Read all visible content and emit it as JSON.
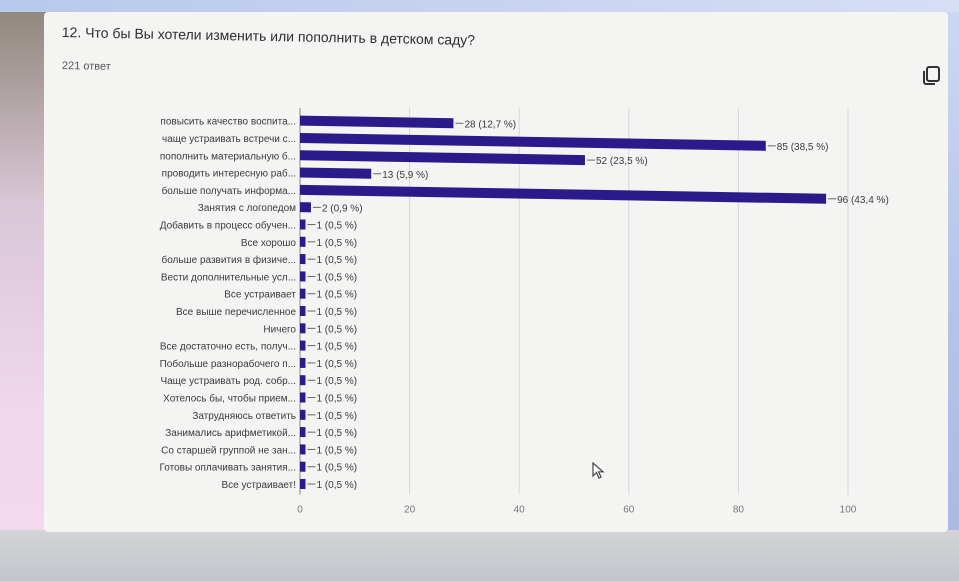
{
  "header": {
    "title": "12. Что бы Вы хотели изменить или пополнить в детском саду?",
    "responses": "221 ответ"
  },
  "icons": {
    "copy": "copy-icon",
    "cursor": "mouse-cursor-icon"
  },
  "colors": {
    "bar": "#2a1a8a",
    "grid": "#d8d8d8",
    "text": "#3a3a40",
    "card": "#f4f4f3"
  },
  "chart_data": {
    "type": "bar",
    "orientation": "horizontal",
    "categories": [
      "повысить качество воспита...",
      "чаще устраивать встречи с...",
      "пополнить материальную б...",
      "проводить интересную раб...",
      "больше получать информа...",
      "Занятия с логопедом",
      "Добавить в процесс обучен...",
      "Все хорошо",
      "больше развития в физиче...",
      "Вести дополнительные усл...",
      "Все устраивает",
      "Все выше перечисленное",
      "Ничего",
      "Все достаточно есть, получ...",
      "Побольше разнорабочего п...",
      "Чаще устраивать род. собр...",
      "Хотелось бы, чтобы прием...",
      "Затрудняюсь ответить",
      "Занимались арифметикой...",
      "Со старшей группой не зан...",
      "Готовы оплачивать занятия...",
      "Все устраивает!"
    ],
    "values": [
      28,
      85,
      52,
      13,
      96,
      2,
      1,
      1,
      1,
      1,
      1,
      1,
      1,
      1,
      1,
      1,
      1,
      1,
      1,
      1,
      1,
      1
    ],
    "data_labels": [
      "28 (12,7 %)",
      "85 (38,5 %)",
      "52 (23,5 %)",
      "13 (5,9 %)",
      "96 (43,4 %)",
      "2 (0,9 %)",
      "1 (0,5 %)",
      "1 (0,5 %)",
      "1 (0,5 %)",
      "1 (0,5 %)",
      "1 (0,5 %)",
      "1 (0,5 %)",
      "1 (0,5 %)",
      "1 (0,5 %)",
      "1 (0,5 %)",
      "1 (0,5 %)",
      "1 (0,5 %)",
      "1 (0,5 %)",
      "1 (0,5 %)",
      "1 (0,5 %)",
      "1 (0,5 %)",
      "1 (0,5 %)"
    ],
    "x_ticks": [
      0,
      20,
      40,
      60,
      80,
      100
    ],
    "xlim": [
      0,
      100
    ],
    "grid": true,
    "legend": "none"
  }
}
